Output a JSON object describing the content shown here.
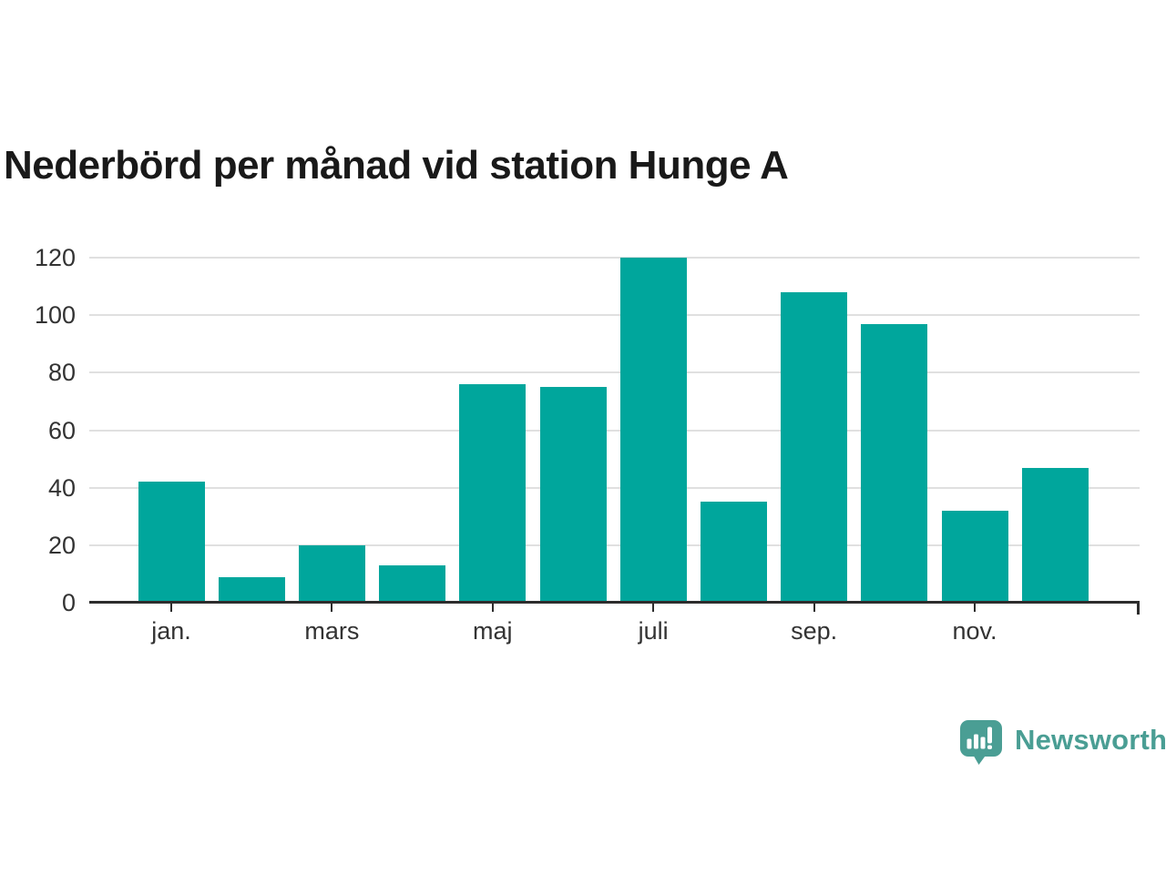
{
  "title": "Nederbörd per månad vid station Hunge A",
  "colors": {
    "background": "#ffffff",
    "bar": "#00a69c",
    "grid": "#e0e0e0",
    "axis": "#2d2d2d",
    "tick_label": "#333333",
    "title_text": "#191919",
    "brand": "#4a9e94"
  },
  "chart_data": {
    "type": "bar",
    "title": "Nederbörd per månad vid station Hunge A",
    "xlabel": "",
    "ylabel": "",
    "ylim": [
      0,
      120
    ],
    "y_ticks": [
      0,
      20,
      40,
      60,
      80,
      100,
      120
    ],
    "grid": "horizontal",
    "legend": "none",
    "bar_count": 12,
    "values": [
      42,
      9,
      20,
      13,
      76,
      75,
      120,
      35,
      108,
      97,
      32,
      47
    ],
    "x_ticks": [
      {
        "bar_index": 0,
        "label": "jan."
      },
      {
        "bar_index": 2,
        "label": "mars"
      },
      {
        "bar_index": 4,
        "label": "maj"
      },
      {
        "bar_index": 6,
        "label": "juli"
      },
      {
        "bar_index": 8,
        "label": "sep."
      },
      {
        "bar_index": 10,
        "label": "nov."
      }
    ]
  },
  "branding": {
    "label": "Newsworthy",
    "icon": "newsworthy-logo-icon"
  }
}
